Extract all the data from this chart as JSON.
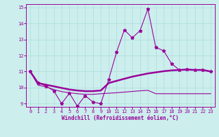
{
  "xlabel": "Windchill (Refroidissement éolien,°C)",
  "background_color": "#cceeed",
  "line_color": "#990099",
  "xlim": [
    -0.5,
    23.5
  ],
  "ylim": [
    8.8,
    15.2
  ],
  "yticks": [
    9,
    10,
    11,
    12,
    13,
    14,
    15
  ],
  "xticks": [
    0,
    1,
    2,
    3,
    4,
    5,
    6,
    7,
    8,
    9,
    10,
    11,
    12,
    13,
    14,
    15,
    16,
    17,
    18,
    19,
    20,
    21,
    22,
    23
  ],
  "series1_x": [
    0,
    1,
    2,
    3,
    4,
    5,
    6,
    7,
    8,
    9,
    10,
    11,
    12,
    13,
    14,
    15,
    16,
    17,
    18,
    19,
    20,
    21,
    22,
    23
  ],
  "series1_y": [
    11.0,
    10.3,
    10.1,
    9.8,
    9.0,
    9.65,
    8.85,
    9.5,
    9.1,
    9.0,
    10.5,
    12.2,
    13.6,
    13.1,
    13.55,
    14.9,
    12.5,
    12.3,
    11.5,
    11.1,
    11.15,
    11.1,
    11.1,
    11.0
  ],
  "series2_x": [
    0,
    1,
    2,
    3,
    4,
    5,
    6,
    7,
    8,
    9,
    10,
    11,
    12,
    13,
    14,
    15,
    16,
    17,
    18,
    19,
    20,
    21,
    22,
    23
  ],
  "series2_y": [
    11.0,
    10.28,
    10.18,
    10.08,
    9.98,
    9.88,
    9.82,
    9.78,
    9.78,
    9.82,
    10.28,
    10.42,
    10.55,
    10.68,
    10.78,
    10.88,
    10.95,
    11.02,
    11.07,
    11.1,
    11.12,
    11.1,
    11.1,
    11.0
  ],
  "series3_x": [
    0,
    1,
    2,
    3,
    4,
    5,
    6,
    7,
    8,
    9,
    10,
    11,
    12,
    13,
    14,
    15,
    16,
    17,
    18,
    19,
    20,
    21,
    22,
    23
  ],
  "series3_y": [
    11.0,
    10.15,
    10.05,
    9.88,
    9.75,
    9.68,
    9.62,
    9.58,
    9.58,
    9.62,
    9.65,
    9.68,
    9.72,
    9.76,
    9.8,
    9.83,
    9.62,
    9.62,
    9.62,
    9.62,
    9.62,
    9.62,
    9.62,
    9.62
  ],
  "grid_color": "#aadddd",
  "tick_fontsize": 5,
  "xlabel_fontsize": 5.5
}
